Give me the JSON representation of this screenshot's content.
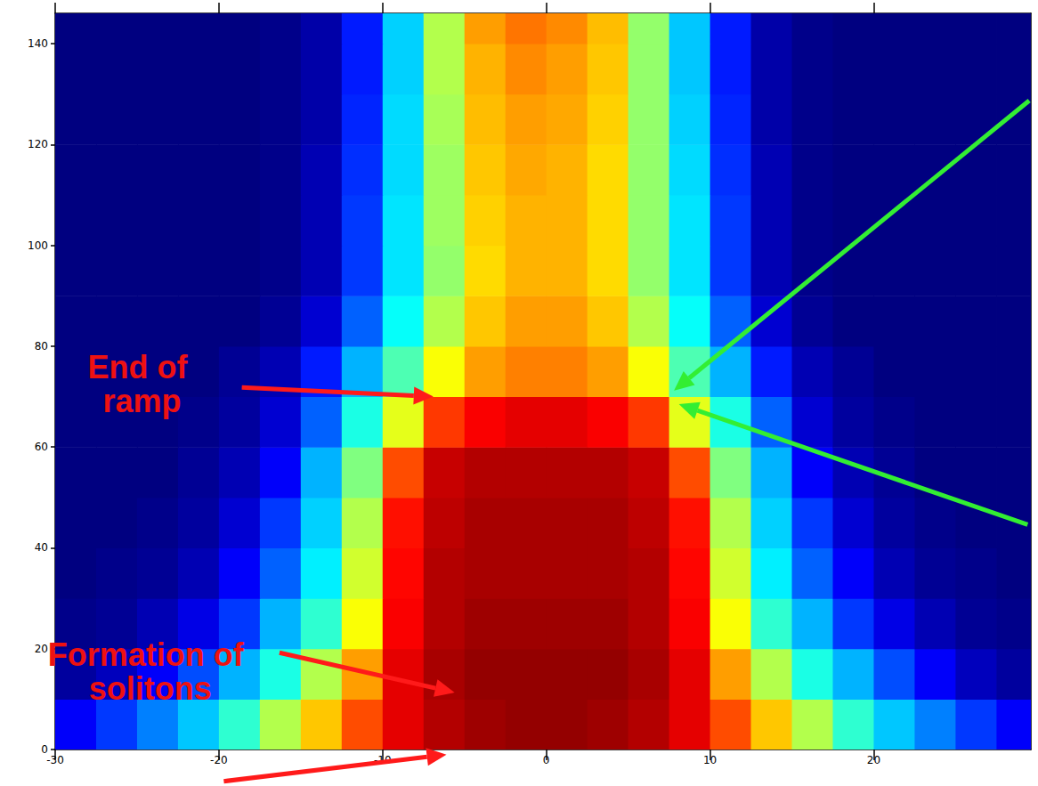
{
  "chart_data": {
    "type": "heatmap",
    "xlim": [
      -30,
      29.6
    ],
    "xticks": [
      -30,
      -20,
      -10,
      0,
      10,
      20
    ],
    "ylim": [
      0,
      146
    ],
    "yticks": [
      0,
      20,
      40,
      60,
      80,
      100,
      120,
      140
    ],
    "tick_labels": true,
    "x_edges": [
      -30,
      -27.5,
      -25,
      -22.5,
      -20,
      -17.5,
      -15,
      -12.5,
      -10,
      -7.5,
      -5,
      -2.5,
      0,
      2.5,
      5,
      7.5,
      10,
      12.5,
      15,
      17.5,
      20,
      22.5,
      25,
      27.5,
      30
    ],
    "y_edges": [
      0,
      10,
      20,
      30,
      40,
      50,
      60,
      70,
      80,
      90,
      100,
      110,
      120,
      130,
      140,
      150
    ],
    "color_range": [
      0,
      1
    ],
    "cells": [
      [
        0.12,
        0.18,
        0.25,
        0.32,
        0.42,
        0.55,
        0.68,
        0.8,
        0.9,
        0.95,
        0.97,
        0.98,
        0.98,
        0.97,
        0.95,
        0.9,
        0.8,
        0.68,
        0.55,
        0.42,
        0.32,
        0.25,
        0.18,
        0.12
      ],
      [
        0.03,
        0.06,
        0.12,
        0.2,
        0.3,
        0.4,
        0.55,
        0.72,
        0.9,
        0.96,
        0.98,
        0.98,
        0.98,
        0.98,
        0.96,
        0.9,
        0.72,
        0.55,
        0.4,
        0.3,
        0.2,
        0.12,
        0.06,
        0.03
      ],
      [
        0.01,
        0.02,
        0.05,
        0.1,
        0.18,
        0.3,
        0.42,
        0.62,
        0.88,
        0.95,
        0.97,
        0.97,
        0.97,
        0.97,
        0.95,
        0.88,
        0.62,
        0.42,
        0.3,
        0.18,
        0.1,
        0.05,
        0.02,
        0.01
      ],
      [
        0,
        0.01,
        0.02,
        0.05,
        0.12,
        0.22,
        0.36,
        0.58,
        0.87,
        0.95,
        0.96,
        0.96,
        0.96,
        0.96,
        0.95,
        0.87,
        0.58,
        0.36,
        0.22,
        0.12,
        0.05,
        0.02,
        0.01,
        0
      ],
      [
        0,
        0,
        0.01,
        0.03,
        0.08,
        0.18,
        0.33,
        0.55,
        0.86,
        0.94,
        0.96,
        0.96,
        0.96,
        0.96,
        0.94,
        0.86,
        0.55,
        0.33,
        0.18,
        0.08,
        0.03,
        0.01,
        0,
        0
      ],
      [
        0,
        0,
        0,
        0.02,
        0.05,
        0.12,
        0.3,
        0.5,
        0.8,
        0.93,
        0.95,
        0.95,
        0.95,
        0.95,
        0.93,
        0.8,
        0.5,
        0.3,
        0.12,
        0.05,
        0.02,
        0,
        0,
        0
      ],
      [
        0,
        0,
        0,
        0.01,
        0.03,
        0.08,
        0.22,
        0.4,
        0.6,
        0.82,
        0.88,
        0.9,
        0.9,
        0.88,
        0.82,
        0.6,
        0.4,
        0.22,
        0.08,
        0.03,
        0.01,
        0,
        0,
        0
      ],
      [
        0,
        0,
        0,
        0,
        0.02,
        0.05,
        0.15,
        0.3,
        0.45,
        0.62,
        0.72,
        0.75,
        0.75,
        0.72,
        0.62,
        0.45,
        0.3,
        0.15,
        0.05,
        0.02,
        0,
        0,
        0,
        0
      ],
      [
        0,
        0,
        0,
        0,
        0,
        0.02,
        0.08,
        0.22,
        0.38,
        0.55,
        0.68,
        0.72,
        0.72,
        0.68,
        0.55,
        0.38,
        0.22,
        0.08,
        0.02,
        0,
        0,
        0,
        0,
        0
      ],
      [
        0,
        0,
        0,
        0,
        0,
        0.01,
        0.05,
        0.18,
        0.35,
        0.52,
        0.66,
        0.7,
        0.7,
        0.66,
        0.52,
        0.35,
        0.18,
        0.05,
        0.01,
        0,
        0,
        0,
        0,
        0
      ],
      [
        0,
        0,
        0,
        0,
        0,
        0.01,
        0.05,
        0.18,
        0.35,
        0.53,
        0.67,
        0.7,
        0.7,
        0.66,
        0.52,
        0.35,
        0.18,
        0.05,
        0.01,
        0,
        0,
        0,
        0,
        0
      ],
      [
        0,
        0,
        0,
        0,
        0,
        0.01,
        0.05,
        0.17,
        0.34,
        0.53,
        0.68,
        0.71,
        0.7,
        0.66,
        0.52,
        0.34,
        0.17,
        0.05,
        0.01,
        0,
        0,
        0,
        0,
        0
      ],
      [
        0,
        0,
        0,
        0,
        0,
        0.01,
        0.04,
        0.16,
        0.34,
        0.54,
        0.69,
        0.72,
        0.71,
        0.67,
        0.52,
        0.33,
        0.16,
        0.04,
        0.01,
        0,
        0,
        0,
        0,
        0
      ],
      [
        0,
        0,
        0,
        0,
        0,
        0.01,
        0.04,
        0.15,
        0.33,
        0.55,
        0.7,
        0.74,
        0.72,
        0.68,
        0.52,
        0.32,
        0.15,
        0.04,
        0.01,
        0,
        0,
        0,
        0,
        0
      ],
      [
        0,
        0,
        0,
        0,
        0,
        0.01,
        0.04,
        0.15,
        0.33,
        0.55,
        0.72,
        0.76,
        0.74,
        0.69,
        0.52,
        0.32,
        0.15,
        0.04,
        0.01,
        0,
        0,
        0,
        0,
        0
      ]
    ],
    "annotations": [
      {
        "text": "End of ramp",
        "x": -24.7,
        "y": 72.5,
        "color": "#ee1111"
      },
      {
        "text": "Formation of solitons",
        "x": -24.2,
        "y": 15.4,
        "color": "#ee1111"
      }
    ],
    "arrows": [
      {
        "from": [
          -18.6,
          71.8
        ],
        "to": [
          -6.9,
          70.0
        ],
        "color": "#ff1a1a"
      },
      {
        "from": [
          -16.3,
          19.2
        ],
        "to": [
          -5.6,
          11.3
        ],
        "color": "#ff1a1a"
      },
      {
        "from": [
          -19.7,
          -6.3
        ],
        "to": [
          -6.1,
          -1.0
        ],
        "color": "#ff1a1a"
      },
      {
        "from": [
          29.5,
          128.7
        ],
        "to": [
          7.8,
          71.2
        ],
        "color": "#33ee33"
      },
      {
        "from": [
          29.4,
          44.6
        ],
        "to": [
          8.1,
          68.5
        ],
        "color": "#33ee33"
      }
    ]
  }
}
